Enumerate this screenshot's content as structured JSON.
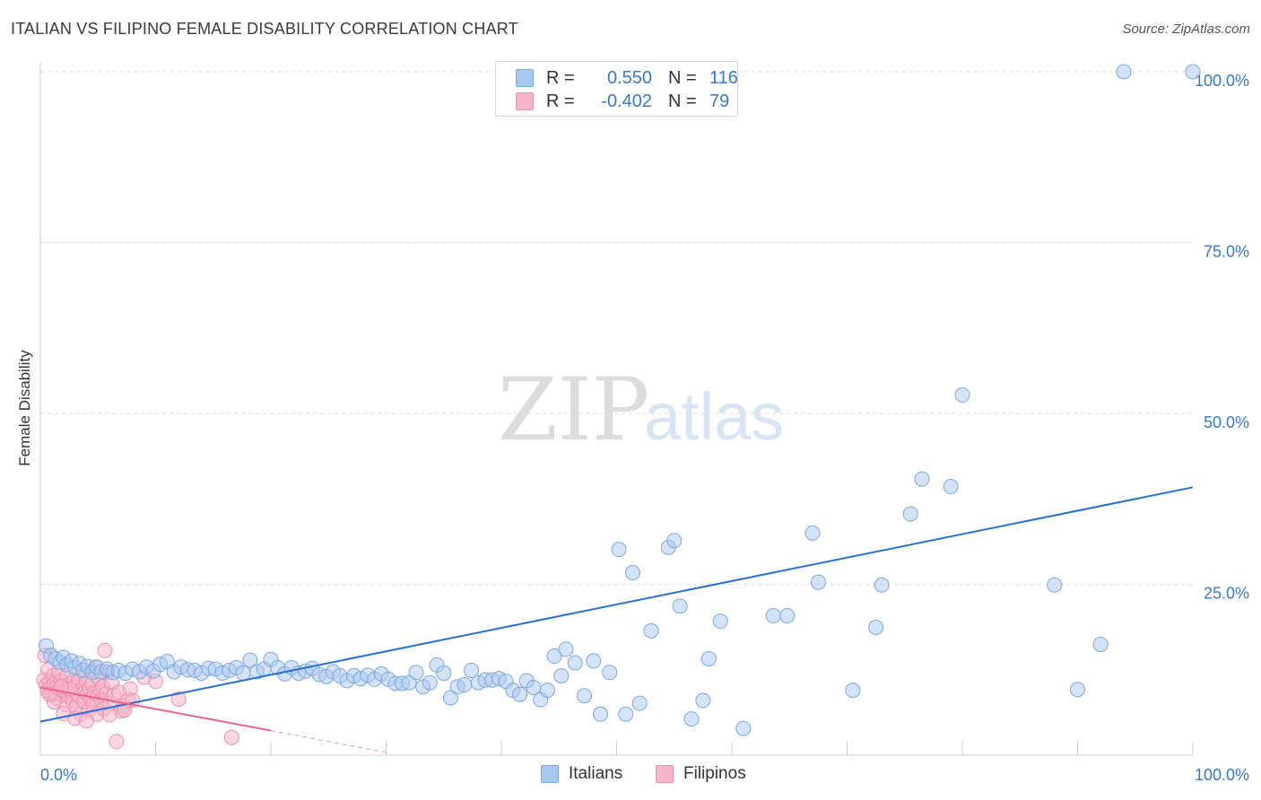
{
  "title": "ITALIAN VS FILIPINO FEMALE DISABILITY CORRELATION CHART",
  "source": "Source: ZipAtlas.com",
  "watermark": {
    "zip": "ZIP",
    "atlas": "atlas"
  },
  "legend": {
    "rows": [
      {
        "r_label": "R =",
        "r_value": "0.550",
        "n_label": "N =",
        "n_value": "116"
      },
      {
        "r_label": "R =",
        "r_value": "-0.402",
        "n_label": "N =",
        "n_value": "79"
      }
    ]
  },
  "colors": {
    "italians_fill": "#a9c8f0",
    "italians_stroke": "#7aa8e0",
    "italians_line": "#2a6fd0",
    "filipinos_fill": "#f6b6cb",
    "filipinos_stroke": "#ee8fae",
    "filipinos_line": "#e9628f",
    "axis_text": "#3a78c9",
    "grid": "#dddddd"
  },
  "chart_data": {
    "type": "scatter",
    "title": "ITALIAN VS FILIPINO FEMALE DISABILITY CORRELATION CHART",
    "xlabel": "",
    "ylabel": "Female Disability",
    "xlim": [
      0,
      100
    ],
    "ylim": [
      0,
      102
    ],
    "x_tick_labels": [
      "0.0%",
      "100.0%"
    ],
    "y_tick_labels": [
      {
        "value": 100,
        "label": "100.0%"
      },
      {
        "value": 75,
        "label": "75.0%"
      },
      {
        "value": 50,
        "label": "50.0%"
      },
      {
        "value": 25,
        "label": "25.0%"
      }
    ],
    "series": [
      {
        "name": "Italians",
        "r": 0.55,
        "n": 116,
        "trend": {
          "x": [
            0,
            100
          ],
          "y": [
            4.9,
            39.2
          ]
        },
        "points": [
          [
            0.5,
            16
          ],
          [
            0.9,
            14.6
          ],
          [
            1.3,
            14.1
          ],
          [
            1.7,
            13.6
          ],
          [
            2.0,
            14.3
          ],
          [
            2.3,
            13.2
          ],
          [
            2.7,
            13.8
          ],
          [
            3.0,
            12.8
          ],
          [
            3.4,
            13.4
          ],
          [
            3.7,
            12.4
          ],
          [
            4.1,
            13.0
          ],
          [
            4.5,
            12.1
          ],
          [
            4.9,
            12.9
          ],
          [
            5.3,
            12.2
          ],
          [
            5.8,
            12.6
          ],
          [
            6.3,
            12.1
          ],
          [
            6.8,
            12.4
          ],
          [
            7.4,
            12.0
          ],
          [
            8.0,
            12.6
          ],
          [
            8.6,
            12.2
          ],
          [
            9.2,
            12.9
          ],
          [
            9.8,
            12.3
          ],
          [
            10.4,
            13.3
          ],
          [
            11.0,
            13.7
          ],
          [
            11.6,
            12.2
          ],
          [
            12.2,
            12.9
          ],
          [
            12.8,
            12.5
          ],
          [
            13.4,
            12.4
          ],
          [
            14.0,
            12.0
          ],
          [
            14.6,
            12.7
          ],
          [
            15.2,
            12.6
          ],
          [
            15.8,
            12.0
          ],
          [
            16.4,
            12.4
          ],
          [
            17.0,
            12.8
          ],
          [
            17.6,
            12.0
          ],
          [
            18.2,
            13.9
          ],
          [
            18.8,
            12.2
          ],
          [
            19.4,
            12.6
          ],
          [
            20.0,
            14.0
          ],
          [
            20.6,
            12.8
          ],
          [
            21.2,
            11.9
          ],
          [
            21.8,
            12.8
          ],
          [
            22.4,
            12.0
          ],
          [
            23.0,
            12.3
          ],
          [
            23.6,
            12.7
          ],
          [
            24.2,
            11.8
          ],
          [
            24.8,
            11.5
          ],
          [
            25.4,
            12.2
          ],
          [
            26.0,
            11.6
          ],
          [
            26.6,
            10.9
          ],
          [
            27.2,
            11.6
          ],
          [
            27.8,
            11.2
          ],
          [
            28.4,
            11.7
          ],
          [
            29.0,
            11.1
          ],
          [
            29.6,
            11.9
          ],
          [
            30.2,
            11.1
          ],
          [
            30.8,
            10.5
          ],
          [
            31.4,
            10.5
          ],
          [
            32.0,
            10.6
          ],
          [
            32.6,
            12.1
          ],
          [
            33.2,
            10.0
          ],
          [
            33.8,
            10.6
          ],
          [
            34.4,
            13.2
          ],
          [
            35.0,
            12.0
          ],
          [
            35.6,
            8.4
          ],
          [
            36.2,
            10.0
          ],
          [
            36.8,
            10.3
          ],
          [
            37.4,
            12.4
          ],
          [
            38.0,
            10.6
          ],
          [
            38.6,
            11.0
          ],
          [
            39.2,
            11.0
          ],
          [
            39.8,
            11.2
          ],
          [
            40.4,
            10.8
          ],
          [
            41.0,
            9.5
          ],
          [
            41.6,
            8.9
          ],
          [
            42.2,
            10.9
          ],
          [
            42.8,
            9.9
          ],
          [
            43.4,
            8.1
          ],
          [
            44.0,
            9.5
          ],
          [
            44.6,
            14.5
          ],
          [
            45.2,
            11.6
          ],
          [
            45.6,
            15.5
          ],
          [
            46.4,
            13.5
          ],
          [
            47.2,
            8.7
          ],
          [
            48.0,
            13.8
          ],
          [
            48.6,
            6.0
          ],
          [
            49.4,
            12.1
          ],
          [
            50.2,
            30.1
          ],
          [
            50.8,
            6.0
          ],
          [
            51.4,
            26.7
          ],
          [
            52.0,
            7.6
          ],
          [
            53.0,
            18.2
          ],
          [
            54.5,
            30.4
          ],
          [
            55.0,
            31.4
          ],
          [
            55.5,
            21.8
          ],
          [
            56.5,
            5.3
          ],
          [
            57.5,
            8.0
          ],
          [
            58.0,
            14.1
          ],
          [
            59.0,
            19.6
          ],
          [
            61.0,
            3.9
          ],
          [
            63.6,
            20.4
          ],
          [
            64.8,
            20.4
          ],
          [
            67.0,
            32.5
          ],
          [
            67.5,
            25.3
          ],
          [
            70.5,
            9.5
          ],
          [
            72.5,
            18.7
          ],
          [
            73.0,
            24.9
          ],
          [
            75.5,
            35.3
          ],
          [
            76.5,
            40.4
          ],
          [
            80.0,
            52.7
          ],
          [
            79.0,
            39.3
          ],
          [
            88.0,
            24.9
          ],
          [
            90.0,
            9.6
          ],
          [
            92.0,
            16.2
          ],
          [
            94.0,
            100
          ],
          [
            103.0,
            100
          ]
        ]
      },
      {
        "name": "Filipinos",
        "r": -0.402,
        "n": 79,
        "trend": {
          "x": [
            0,
            20
          ],
          "y": [
            9.9,
            3.6
          ]
        },
        "trend_extension": {
          "x": [
            20,
            30
          ],
          "y": [
            3.6,
            0.4
          ]
        },
        "points": [
          [
            0.3,
            11.0
          ],
          [
            0.5,
            10.2
          ],
          [
            0.6,
            9.4
          ],
          [
            0.7,
            12.5
          ],
          [
            0.8,
            10.8
          ],
          [
            0.9,
            9.9
          ],
          [
            1.0,
            8.9
          ],
          [
            1.1,
            11.6
          ],
          [
            1.2,
            10.4
          ],
          [
            1.3,
            9.1
          ],
          [
            1.4,
            10.0
          ],
          [
            1.5,
            8.3
          ],
          [
            1.6,
            12.2
          ],
          [
            1.7,
            9.6
          ],
          [
            1.8,
            10.9
          ],
          [
            1.9,
            8.8
          ],
          [
            2.0,
            10.1
          ],
          [
            2.1,
            9.4
          ],
          [
            2.2,
            7.4
          ],
          [
            2.3,
            11.6
          ],
          [
            2.4,
            9.7
          ],
          [
            2.5,
            8.6
          ],
          [
            2.6,
            10.5
          ],
          [
            2.7,
            9.3
          ],
          [
            2.8,
            8.0
          ],
          [
            2.9,
            11.0
          ],
          [
            3.0,
            9.9
          ],
          [
            3.1,
            7.1
          ],
          [
            3.2,
            9.0
          ],
          [
            3.3,
            10.8
          ],
          [
            3.4,
            8.5
          ],
          [
            3.5,
            6.0
          ],
          [
            3.6,
            9.6
          ],
          [
            3.7,
            12.0
          ],
          [
            3.8,
            7.8
          ],
          [
            3.9,
            9.4
          ],
          [
            4.0,
            10.8
          ],
          [
            4.1,
            8.9
          ],
          [
            4.2,
            6.6
          ],
          [
            4.3,
            9.8
          ],
          [
            4.4,
            8.2
          ],
          [
            4.5,
            10.4
          ],
          [
            4.6,
            7.4
          ],
          [
            4.7,
            9.1
          ],
          [
            4.8,
            12.9
          ],
          [
            4.9,
            6.0
          ],
          [
            5.0,
            8.7
          ],
          [
            5.1,
            11.2
          ],
          [
            5.2,
            9.5
          ],
          [
            5.3,
            8.0
          ],
          [
            5.4,
            10.0
          ],
          [
            5.5,
            6.8
          ],
          [
            5.6,
            15.3
          ],
          [
            5.7,
            9.0
          ],
          [
            5.8,
            12.2
          ],
          [
            6.0,
            7.6
          ],
          [
            6.2,
            10.6
          ],
          [
            6.4,
            8.8
          ],
          [
            6.6,
            2.0
          ],
          [
            6.8,
            9.2
          ],
          [
            7.0,
            6.5
          ],
          [
            7.2,
            7.2
          ],
          [
            7.6,
            8.1
          ],
          [
            7.8,
            9.7
          ],
          [
            8.0,
            8.0
          ],
          [
            9.0,
            11.4
          ],
          [
            10.0,
            10.8
          ],
          [
            1.2,
            7.8
          ],
          [
            0.8,
            8.9
          ],
          [
            2.0,
            6.1
          ],
          [
            3.0,
            5.4
          ],
          [
            4.0,
            5.0
          ],
          [
            6.0,
            5.9
          ],
          [
            7.3,
            6.6
          ],
          [
            16.6,
            2.6
          ],
          [
            12.0,
            8.2
          ],
          [
            2.6,
            9.7
          ],
          [
            1.8,
            10.0
          ],
          [
            0.4,
            14.6
          ]
        ]
      }
    ]
  },
  "bottom_legend": {
    "items": [
      "Italians",
      "Filipinos"
    ]
  }
}
